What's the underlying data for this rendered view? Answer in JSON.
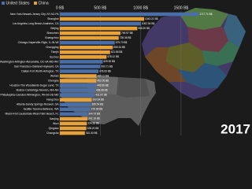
{
  "chart_data": {
    "type": "bar",
    "orientation": "horizontal",
    "annotation": "2017",
    "xlim": [
      0,
      2300
    ],
    "xticks": [
      {
        "value": 0,
        "label": "0 B$"
      },
      {
        "value": 500,
        "label": "500 B$"
      },
      {
        "value": 1000,
        "label": "1000 B$"
      },
      {
        "value": 1500,
        "label": "1500 B$"
      }
    ],
    "grid": true,
    "legend": "top-left",
    "categories": [
      "New York-Newark-Jersey City, NY-NJ-PA",
      "Shanghai",
      "Los Angeles-Long Beach-Anaheim, CA",
      "Beijing",
      "Shenzhen",
      "Guangzhou",
      "Chicago-Naperville-Elgin, IL-IN-WI",
      "Chongqing",
      "Tianjin",
      "Suzhou",
      "Washington-Arlington-Alexandria, DC-VA-MD-WV",
      "San Francisco-Oakland-Hayward, CA",
      "Dallas-Fort Worth-Arlington, TX",
      "Wuhan",
      "Chengdu",
      "Houston-The Woodlands-Sugar Land, TX",
      "Boston-Cambridge-Newton, MA-NH",
      "Philadelphia-Camden-Wilmington, PA-NJ-DE-MD",
      "Hangzhou",
      "Atlanta-Sandy Springs-Roswell, GA",
      "Seattle-Tacoma-Bellevue, WA",
      "Miami-Fort Lauderdale-West Palm Beach, FL",
      "Nanjing",
      "Wuxi",
      "Qingdao",
      "Changsha"
    ],
    "series": [
      {
        "name": "United States",
        "color": "#4a6fa8",
        "values": [
          1717.71,
          null,
          1002.54,
          null,
          null,
          null,
          679.7,
          null,
          null,
          null,
          529.9,
          500.71,
          478.63,
          null,
          null,
          449.56,
          438.68,
          431.0,
          null,
          385.54,
          376.98,
          344.7,
          null,
          null,
          null,
          null
        ],
        "value_labels": [
          "1717.71 B$",
          null,
          "1002.54 B$",
          null,
          null,
          null,
          "679.70 B$",
          null,
          null,
          null,
          "529.90 B$",
          "500.71 B$",
          "478.63 B$",
          null,
          null,
          "449.56 B$",
          "438.68 B$",
          "431.00 B$",
          null,
          "385.54 B$",
          "376.98 B$",
          "344.70 B$",
          null,
          null,
          null,
          null
        ]
      },
      {
        "name": "China",
        "color": "#e8a23a",
        "values": [
          null,
          1043.21,
          null,
          958.39,
          749.97,
          728.36,
          null,
          655.34,
          621.86,
          578.12,
          null,
          null,
          null,
          454.1,
          452.05,
          null,
          null,
          null,
          393.64,
          null,
          null,
          null,
          342.18,
          334.36,
          328.2,
          310.3
        ],
        "value_labels": [
          null,
          "1043.21 B$",
          null,
          "958.39 B$",
          "749.97 B$",
          "728.36 B$",
          null,
          "655.34 B$",
          "621.86 B$",
          "578.12 B$",
          null,
          null,
          null,
          "454.10 B$",
          "452.05 B$",
          null,
          null,
          null,
          "393.64 B$",
          null,
          null,
          null,
          "342.18 B$",
          "334.36 B$",
          "328.20 B$",
          "310.30 B$"
        ]
      }
    ]
  }
}
